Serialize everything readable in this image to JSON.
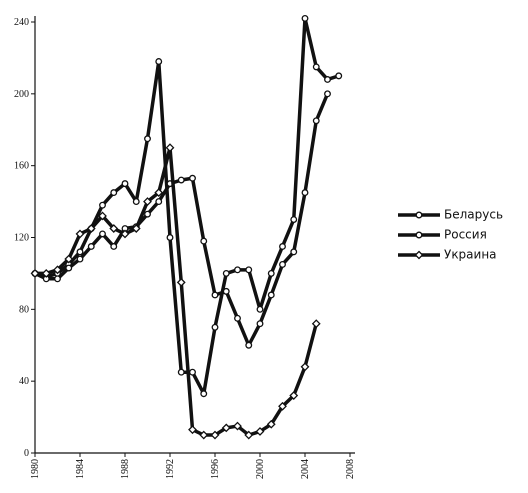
{
  "chart_data": {
    "type": "line",
    "x": [
      1980,
      1981,
      1982,
      1983,
      1984,
      1985,
      1986,
      1987,
      1988,
      1989,
      1990,
      1991,
      1992,
      1993,
      1994,
      1995,
      1996,
      1997,
      1998,
      1999,
      2000,
      2001,
      2002,
      2003,
      2004,
      2005,
      2006,
      2007
    ],
    "series": [
      {
        "name": "Беларусь",
        "color": "#111111",
        "marker": "circle",
        "values": [
          100,
          98,
          100,
          105,
          112,
          125,
          138,
          145,
          150,
          140,
          175,
          218,
          120,
          45,
          45,
          33,
          70,
          100,
          102,
          102,
          80,
          100,
          115,
          130,
          242,
          215,
          208,
          210
        ]
      },
      {
        "name": "Россия",
        "color": "#111111",
        "marker": "circle",
        "values": [
          100,
          97,
          97,
          103,
          108,
          115,
          122,
          115,
          125,
          126,
          133,
          140,
          150,
          152,
          153,
          118,
          88,
          90,
          75,
          60,
          72,
          88,
          105,
          112,
          145,
          185,
          200,
          null
        ]
      },
      {
        "name": "Украина",
        "color": "#111111",
        "marker": "diamond",
        "values": [
          100,
          100,
          102,
          108,
          122,
          125,
          132,
          125,
          122,
          125,
          140,
          145,
          170,
          95,
          13,
          10,
          10,
          14,
          15,
          10,
          12,
          16,
          26,
          32,
          48,
          72,
          null,
          null
        ]
      }
    ],
    "xlim": [
      1980,
      2008
    ],
    "xticks": [
      1980,
      1984,
      1988,
      1992,
      1996,
      2000,
      2004,
      2008
    ],
    "ylim": [
      0,
      240
    ],
    "yticks": [
      0,
      40,
      80,
      120,
      160,
      200,
      240
    ]
  }
}
